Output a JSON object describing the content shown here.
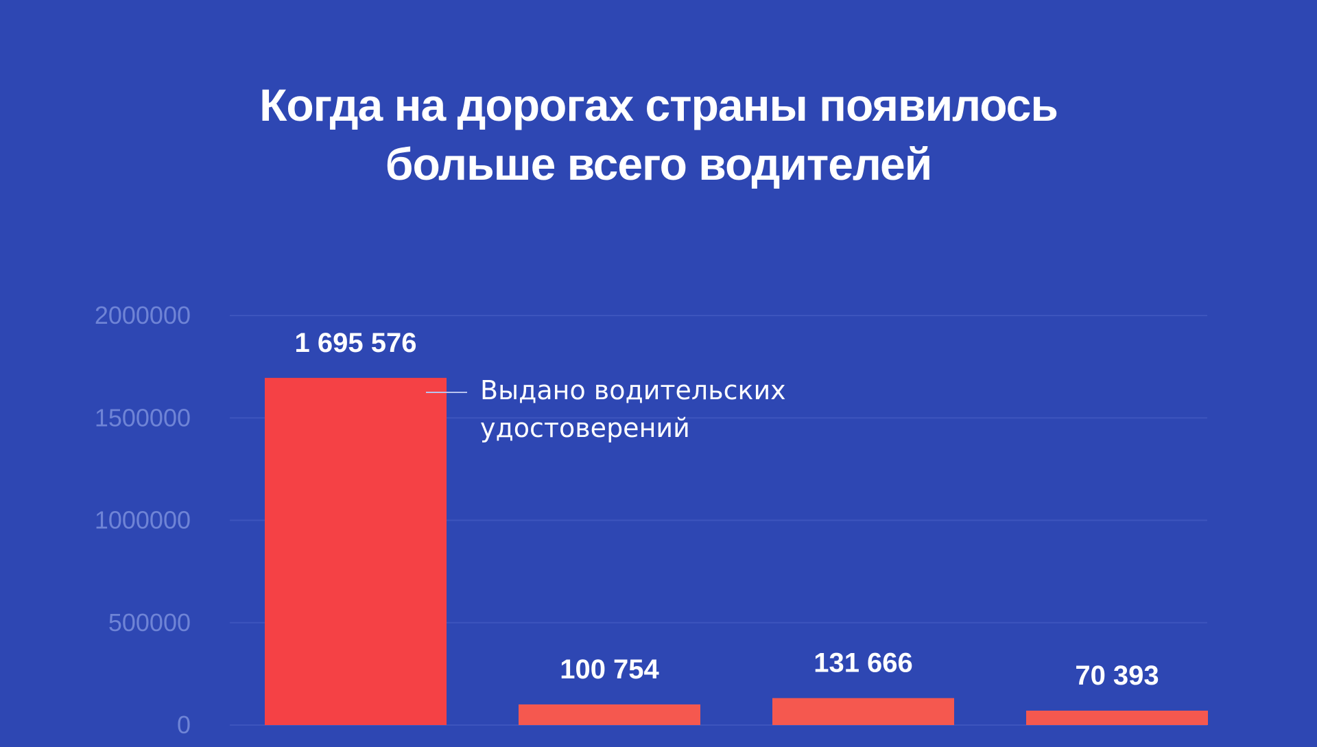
{
  "title_lines": [
    "Когда на дорогах страны появилось",
    "больше всего водителей"
  ],
  "colors": {
    "background": "#2e47b3",
    "bar_primary": "#f54145",
    "bar_secondary": "#f5584f",
    "grid": "#3d55bd",
    "tick": "#6f84d6",
    "text": "#ffffff"
  },
  "chart_data": {
    "type": "bar",
    "title": "Когда на дорогах страны появилось больше всего водителей",
    "categories": [
      "",
      "",
      "",
      ""
    ],
    "series": [
      {
        "name": "Выдано водительских удостоверений",
        "values": [
          1695576,
          100754,
          131666,
          70393
        ],
        "labels": [
          "1 695 576",
          "100 754",
          "131 666",
          "70 393"
        ]
      }
    ],
    "ylim": [
      0,
      2000000
    ],
    "yticks": [
      0,
      500000,
      1000000,
      1500000,
      2000000
    ],
    "ytick_labels": [
      "0",
      "500000",
      "1000000",
      "1500000",
      "2000000"
    ],
    "grid": true,
    "annotation": {
      "bar_index": 0,
      "lines": [
        "Выдано водительских",
        "удостоверений"
      ]
    },
    "xlabel": "",
    "ylabel": ""
  }
}
